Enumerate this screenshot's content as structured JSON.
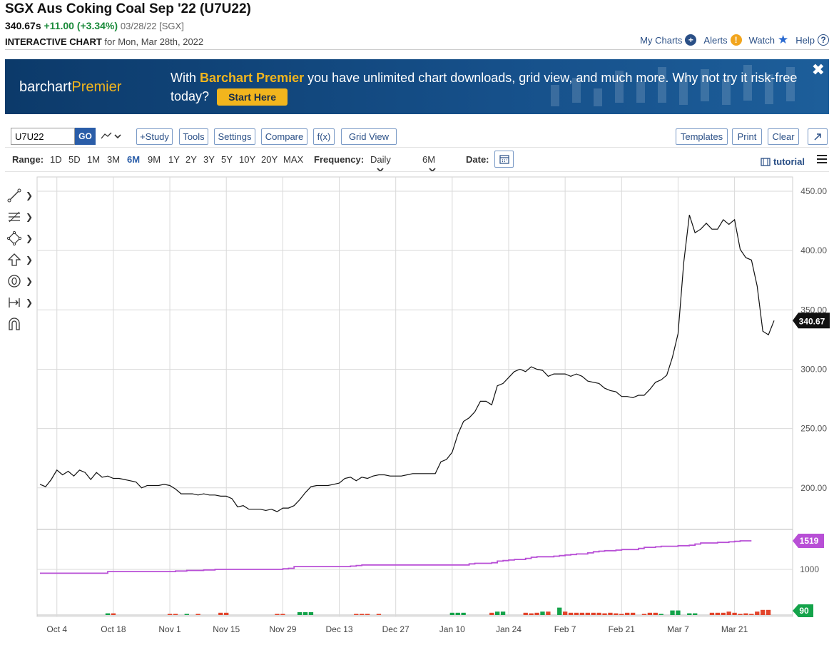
{
  "header": {
    "title": "SGX Aus Coking Coal Sep '22 (U7U22)",
    "last": "340.67s",
    "change": "+11.00 (+3.34%)",
    "date_exchange": "03/28/22 [SGX]",
    "subtitle_bold": "INTERACTIVE CHART",
    "subtitle_rest": "for Mon, Mar 28th, 2022"
  },
  "top_links": {
    "my_charts": "My Charts",
    "alerts": "Alerts",
    "watch": "Watch",
    "help": "Help"
  },
  "banner": {
    "brand_main": "barchart",
    "brand_accent": "Premier",
    "text_before": "With",
    "highlight": "Barchart Premier",
    "text_after": "you have unlimited chart downloads, grid view, and much more. Why not try it risk-free today?",
    "button": "Start Here",
    "close": "✖"
  },
  "toolbar": {
    "symbol": "U7U22",
    "go": "GO",
    "study": "+Study",
    "tools": "Tools",
    "settings": "Settings",
    "compare": "Compare",
    "fx": "f(x)",
    "grid_view": "Grid View",
    "templates": "Templates",
    "print": "Print",
    "clear": "Clear"
  },
  "range": {
    "label": "Range:",
    "options": [
      "1D",
      "5D",
      "1M",
      "3M",
      "6M",
      "9M",
      "1Y",
      "2Y",
      "3Y",
      "5Y",
      "10Y",
      "20Y",
      "MAX"
    ],
    "active": "6M",
    "frequency_label": "Frequency:",
    "frequency": "Daily",
    "period": "6M",
    "date_label": "Date:",
    "tutorial": "tutorial"
  },
  "colors": {
    "price_line": "#111111",
    "open_interest": "#b84fd6",
    "volume_up": "#14a34a",
    "volume_down": "#e2452c",
    "grid": "#d9d9d9",
    "accent": "#2a5da8"
  },
  "chart_data": {
    "type": "line",
    "x_tick_labels": [
      "Oct 4",
      "Oct 18",
      "Nov 1",
      "Nov 15",
      "Nov 29",
      "Dec 13",
      "Dec 27",
      "Jan 10",
      "Jan 24",
      "Feb 7",
      "Feb 21",
      "Mar 7",
      "Mar 21"
    ],
    "price_axis": {
      "ticks": [
        200,
        250,
        300,
        350,
        400,
        450
      ],
      "ticks_label": [
        "200.00",
        "250.00",
        "300.00",
        "350.00",
        "400.00",
        "450.00"
      ],
      "ylim": [
        165,
        462
      ]
    },
    "last_price_label": "340.67",
    "price_series": [
      [
        "Sep 29",
        203
      ],
      [
        "Sep 30",
        201
      ],
      [
        "Oct 1",
        207
      ],
      [
        "Oct 4",
        215
      ],
      [
        "Oct 5",
        211
      ],
      [
        "Oct 6",
        214
      ],
      [
        "Oct 7",
        210
      ],
      [
        "Oct 8",
        215
      ],
      [
        "Oct 11",
        213
      ],
      [
        "Oct 12",
        207
      ],
      [
        "Oct 13",
        213
      ],
      [
        "Oct 14",
        209
      ],
      [
        "Oct 15",
        210
      ],
      [
        "Oct 18",
        208
      ],
      [
        "Oct 19",
        208
      ],
      [
        "Oct 20",
        207
      ],
      [
        "Oct 21",
        206
      ],
      [
        "Oct 22",
        205
      ],
      [
        "Oct 25",
        200
      ],
      [
        "Oct 26",
        202
      ],
      [
        "Oct 27",
        202
      ],
      [
        "Oct 28",
        202
      ],
      [
        "Oct 29",
        203
      ],
      [
        "Nov 1",
        202
      ],
      [
        "Nov 2",
        199
      ],
      [
        "Nov 3",
        195
      ],
      [
        "Nov 4",
        195
      ],
      [
        "Nov 5",
        195
      ],
      [
        "Nov 8",
        194
      ],
      [
        "Nov 9",
        195
      ],
      [
        "Nov 10",
        194
      ],
      [
        "Nov 11",
        194
      ],
      [
        "Nov 12",
        193
      ],
      [
        "Nov 15",
        193
      ],
      [
        "Nov 16",
        191
      ],
      [
        "Nov 17",
        184
      ],
      [
        "Nov 18",
        185
      ],
      [
        "Nov 19",
        182
      ],
      [
        "Nov 22",
        182
      ],
      [
        "Nov 23",
        182
      ],
      [
        "Nov 24",
        181
      ],
      [
        "Nov 25",
        182
      ],
      [
        "Nov 26",
        180
      ],
      [
        "Nov 29",
        183
      ],
      [
        "Nov 30",
        183
      ],
      [
        "Dec 1",
        185
      ],
      [
        "Dec 2",
        190
      ],
      [
        "Dec 3",
        196
      ],
      [
        "Dec 6",
        201
      ],
      [
        "Dec 7",
        202
      ],
      [
        "Dec 8",
        202
      ],
      [
        "Dec 9",
        202
      ],
      [
        "Dec 10",
        203
      ],
      [
        "Dec 13",
        204
      ],
      [
        "Dec 14",
        208
      ],
      [
        "Dec 15",
        209
      ],
      [
        "Dec 16",
        206
      ],
      [
        "Dec 17",
        209
      ],
      [
        "Dec 20",
        208
      ],
      [
        "Dec 21",
        210
      ],
      [
        "Dec 22",
        211
      ],
      [
        "Dec 23",
        211
      ],
      [
        "Dec 24",
        210
      ],
      [
        "Dec 27",
        210
      ],
      [
        "Dec 28",
        210
      ],
      [
        "Dec 29",
        211
      ],
      [
        "Dec 30",
        212
      ],
      [
        "Dec 31",
        212
      ],
      [
        "Jan 3",
        212
      ],
      [
        "Jan 4",
        212
      ],
      [
        "Jan 5",
        212
      ],
      [
        "Jan 6",
        222
      ],
      [
        "Jan 7",
        224
      ],
      [
        "Jan 10",
        230
      ],
      [
        "Jan 11",
        245
      ],
      [
        "Jan 12",
        256
      ],
      [
        "Jan 13",
        259
      ],
      [
        "Jan 14",
        264
      ],
      [
        "Jan 17",
        273
      ],
      [
        "Jan 18",
        273
      ],
      [
        "Jan 19",
        270
      ],
      [
        "Jan 20",
        286
      ],
      [
        "Jan 21",
        288
      ],
      [
        "Jan 24",
        293
      ],
      [
        "Jan 25",
        298
      ],
      [
        "Jan 26",
        300
      ],
      [
        "Jan 27",
        298
      ],
      [
        "Jan 28",
        302
      ],
      [
        "Jan 31",
        300
      ],
      [
        "Feb 1",
        299
      ],
      [
        "Feb 2",
        294
      ],
      [
        "Feb 3",
        296
      ],
      [
        "Feb 4",
        296
      ],
      [
        "Feb 7",
        296
      ],
      [
        "Feb 8",
        294
      ],
      [
        "Feb 9",
        296
      ],
      [
        "Feb 10",
        294
      ],
      [
        "Feb 11",
        290
      ],
      [
        "Feb 14",
        289
      ],
      [
        "Feb 15",
        288
      ],
      [
        "Feb 16",
        284
      ],
      [
        "Feb 17",
        282
      ],
      [
        "Feb 18",
        281
      ],
      [
        "Feb 21",
        277
      ],
      [
        "Feb 22",
        277
      ],
      [
        "Feb 23",
        276
      ],
      [
        "Feb 24",
        278
      ],
      [
        "Feb 25",
        278
      ],
      [
        "Feb 28",
        283
      ],
      [
        "Mar 1",
        289
      ],
      [
        "Mar 2",
        291
      ],
      [
        "Mar 3",
        295
      ],
      [
        "Mar 4",
        310
      ],
      [
        "Mar 7",
        330
      ],
      [
        "Mar 8",
        390
      ],
      [
        "Mar 9",
        430
      ],
      [
        "Mar 10",
        415
      ],
      [
        "Mar 11",
        418
      ],
      [
        "Mar 14",
        423
      ],
      [
        "Mar 15",
        418
      ],
      [
        "Mar 16",
        418
      ],
      [
        "Mar 17",
        426
      ],
      [
        "Mar 18",
        422
      ],
      [
        "Mar 21",
        426
      ],
      [
        "Mar 22",
        401
      ],
      [
        "Mar 23",
        394
      ],
      [
        "Mar 24",
        392
      ],
      [
        "Mar 25",
        370
      ],
      [
        "Mar 28",
        332
      ],
      [
        "Mar 29",
        329
      ],
      [
        "Mar 30",
        341
      ]
    ],
    "open_interest": {
      "label": "1519",
      "axis_ticks": [
        1000
      ],
      "ylim": [
        300,
        1700
      ],
      "values": [
        930,
        930,
        930,
        930,
        930,
        930,
        930,
        930,
        930,
        930,
        930,
        930,
        960,
        960,
        960,
        960,
        960,
        960,
        960,
        960,
        960,
        960,
        960,
        960,
        970,
        970,
        980,
        980,
        980,
        990,
        990,
        1000,
        1000,
        1000,
        1000,
        1000,
        1000,
        1000,
        1000,
        1000,
        1000,
        1000,
        1000,
        1010,
        1020,
        1050,
        1050,
        1050,
        1050,
        1050,
        1050,
        1050,
        1050,
        1050,
        1050,
        1060,
        1070,
        1080,
        1080,
        1080,
        1080,
        1080,
        1080,
        1080,
        1080,
        1080,
        1080,
        1080,
        1080,
        1080,
        1080,
        1080,
        1080,
        1080,
        1080,
        1080,
        1100,
        1110,
        1110,
        1110,
        1120,
        1150,
        1160,
        1170,
        1180,
        1180,
        1200,
        1220,
        1230,
        1230,
        1230,
        1240,
        1250,
        1260,
        1270,
        1280,
        1280,
        1300,
        1320,
        1330,
        1340,
        1340,
        1350,
        1360,
        1360,
        1360,
        1380,
        1400,
        1400,
        1410,
        1420,
        1420,
        1420,
        1430,
        1430,
        1440,
        1460,
        1480,
        1480,
        1480,
        1490,
        1490,
        1500,
        1510,
        1519,
        1519,
        1519
      ]
    },
    "volume": {
      "label": "90",
      "ylim": [
        0,
        400
      ],
      "values": [
        0,
        0,
        0,
        0,
        0,
        0,
        0,
        0,
        0,
        0,
        0,
        0,
        30,
        30,
        0,
        0,
        0,
        0,
        0,
        0,
        0,
        0,
        0,
        20,
        20,
        0,
        20,
        0,
        20,
        0,
        0,
        0,
        40,
        40,
        0,
        0,
        0,
        0,
        0,
        0,
        0,
        0,
        20,
        20,
        0,
        0,
        50,
        50,
        50,
        0,
        0,
        0,
        0,
        0,
        0,
        0,
        20,
        20,
        20,
        0,
        20,
        0,
        0,
        0,
        0,
        0,
        0,
        0,
        0,
        0,
        0,
        0,
        0,
        40,
        40,
        40,
        0,
        0,
        0,
        0,
        40,
        60,
        60,
        0,
        0,
        0,
        40,
        30,
        40,
        60,
        60,
        0,
        130,
        60,
        40,
        40,
        40,
        40,
        40,
        40,
        30,
        40,
        30,
        20,
        40,
        40,
        0,
        20,
        40,
        40,
        20,
        0,
        80,
        80,
        0,
        30,
        30,
        0,
        0,
        40,
        40,
        40,
        60,
        40,
        20,
        30,
        20,
        60,
        90,
        90
      ],
      "up": [
        0,
        0,
        0,
        0,
        0,
        0,
        0,
        0,
        0,
        0,
        0,
        0,
        1,
        0,
        0,
        0,
        0,
        0,
        0,
        0,
        0,
        0,
        0,
        0,
        0,
        0,
        1,
        0,
        0,
        0,
        0,
        0,
        0,
        0,
        0,
        0,
        0,
        0,
        0,
        0,
        0,
        0,
        0,
        0,
        0,
        0,
        1,
        1,
        1,
        0,
        0,
        0,
        0,
        0,
        0,
        0,
        0,
        0,
        0,
        0,
        0,
        0,
        0,
        0,
        0,
        0,
        0,
        0,
        0,
        0,
        0,
        0,
        0,
        1,
        1,
        1,
        0,
        0,
        0,
        0,
        0,
        1,
        1,
        0,
        0,
        0,
        0,
        0,
        0,
        1,
        0,
        0,
        1,
        0,
        0,
        0,
        0,
        0,
        0,
        0,
        0,
        0,
        0,
        0,
        0,
        0,
        0,
        0,
        0,
        0,
        1,
        0,
        1,
        1,
        0,
        1,
        1,
        0,
        0,
        0,
        0,
        0,
        0,
        0,
        0,
        0,
        0,
        0,
        0,
        0
      ]
    }
  }
}
